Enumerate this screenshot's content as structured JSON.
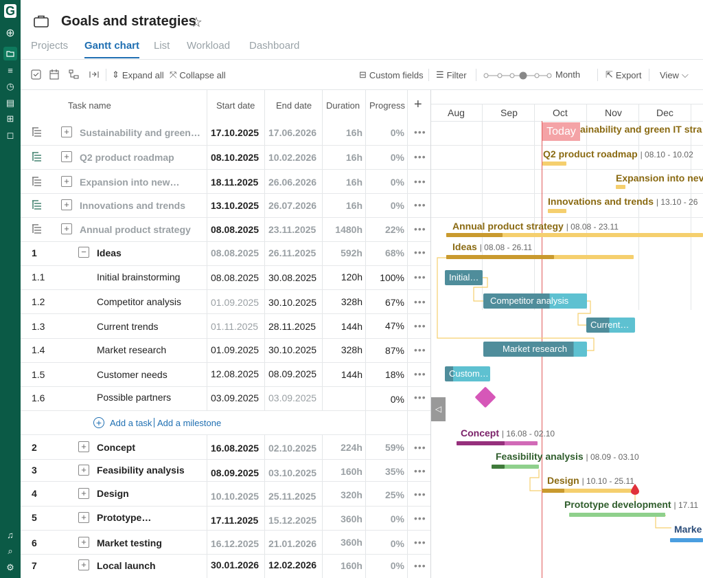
{
  "app": {
    "logo": "G",
    "title": "Goals and strategies"
  },
  "tabs": [
    "Projects",
    "Gantt chart",
    "List",
    "Workload",
    "Dashboard"
  ],
  "toolbar": {
    "expand_all": "Expand all",
    "collapse_all": "Collapse all",
    "custom_fields": "Custom fields",
    "filter": "Filter",
    "zoom": "Month",
    "export": "Export",
    "view": "View"
  },
  "table": {
    "headers": {
      "task_name": "Task name",
      "start": "Start date",
      "end": "End date",
      "duration": "Duration",
      "progress": "Progress",
      "add": "+"
    },
    "projects": [
      {
        "name": "Sustainability and green…",
        "start": "17.10.2025",
        "end": "17.06.2026",
        "duration": "16h",
        "progress": "0%"
      },
      {
        "name": "Q2 product roadmap",
        "start": "08.10.2025",
        "end": "10.02.2026",
        "duration": "16h",
        "progress": "0%"
      },
      {
        "name": "Expansion into new…",
        "start": "18.11.2025",
        "end": "26.06.2026",
        "duration": "16h",
        "progress": "0%"
      },
      {
        "name": "Innovations and trends",
        "start": "13.10.2025",
        "end": "26.07.2026",
        "duration": "16h",
        "progress": "0%"
      },
      {
        "name": "Annual product strategy",
        "start": "08.08.2025",
        "end": "23.11.2025",
        "duration": "1480h",
        "progress": "22%"
      }
    ],
    "ideas": {
      "num": "1",
      "name": "Ideas",
      "start": "08.08.2025",
      "end": "26.11.2025",
      "duration": "592h",
      "progress": "68%"
    },
    "subtasks": [
      {
        "num": "1.1",
        "name": "Initial brainstorming",
        "start": "08.08.2025",
        "end": "30.08.2025",
        "duration": "120h",
        "progress": "100%"
      },
      {
        "num": "1.2",
        "name": "Competitor analysis",
        "start": "01.09.2025",
        "end": "30.10.2025",
        "duration": "328h",
        "progress": "67%"
      },
      {
        "num": "1.3",
        "name": "Current trends",
        "start": "01.11.2025",
        "end": "28.11.2025",
        "duration": "144h",
        "progress": "47%"
      },
      {
        "num": "1.4",
        "name": "Market research",
        "start": "01.09.2025",
        "end": "30.10.2025",
        "duration": "328h",
        "progress": "87%"
      },
      {
        "num": "1.5",
        "name": "Customer needs",
        "start": "12.08.2025",
        "end": "08.09.2025",
        "duration": "144h",
        "progress": "18%"
      },
      {
        "num": "1.6",
        "name": "Possible partners",
        "start": "03.09.2025",
        "end": "03.09.2025",
        "duration": "",
        "progress": "0%"
      }
    ],
    "add_task": "Add a task",
    "add_milestone": "Add a milestone",
    "groups": [
      {
        "num": "2",
        "name": "Concept",
        "start": "16.08.2025",
        "end": "02.10.2025",
        "duration": "224h",
        "progress": "59%"
      },
      {
        "num": "3",
        "name": "Feasibility analysis",
        "start": "08.09.2025",
        "end": "03.10.2025",
        "duration": "160h",
        "progress": "35%"
      },
      {
        "num": "4",
        "name": "Design",
        "start": "10.10.2025",
        "end": "25.11.2025",
        "duration": "320h",
        "progress": "25%"
      },
      {
        "num": "5",
        "name": "Prototype…",
        "start": "17.11.2025",
        "end": "15.12.2025",
        "duration": "360h",
        "progress": "0%"
      },
      {
        "num": "6",
        "name": "Market testing",
        "start": "16.12.2025",
        "end": "21.01.2026",
        "duration": "360h",
        "progress": "0%"
      },
      {
        "num": "7",
        "name": "Local launch",
        "start": "30.01.2026",
        "end": "12.02.2026",
        "duration": "160h",
        "progress": "0%"
      }
    ]
  },
  "gantt": {
    "months": [
      "Aug",
      "Sep",
      "Oct",
      "Nov",
      "Dec"
    ],
    "today": "Today",
    "labels": {
      "sustainability": "ainability and green IT stra",
      "q2": "Q2 product roadmap",
      "q2_dates": "08.10 - 10.02",
      "expansion": "Expansion into nev",
      "innovations": "Innovations and trends",
      "innovations_dates": "13.10 - 26",
      "annual": "Annual product strategy",
      "annual_dates": "08.08 - 23.11",
      "ideas": "Ideas",
      "ideas_dates": "08.08 - 26.11",
      "initial": "Initial…",
      "competitor": "Competitor analysis",
      "current": "Current…",
      "market": "Market research",
      "customer": "Custom…",
      "concept": "Concept",
      "concept_dates": "16.08 - 02.10",
      "feasibility": "Feasibility analysis",
      "feasibility_dates": "08.09 - 03.10",
      "design": "Design",
      "design_dates": "10.10 - 25.11",
      "prototype": "Prototype development",
      "prototype_dates": "17.11",
      "market_testing": "Marke"
    },
    "colors": {
      "gold": "#f5cf6e",
      "gold_dark": "#c99a2e",
      "teal": "#4f8d9b",
      "teal_light": "#5ec1d1",
      "purple": "#96307c",
      "purple_light": "#d16ab7",
      "green": "#6db86a",
      "green_dark": "#3f7a3a",
      "blue": "#4a9ee0",
      "today": "#f4a3a6"
    }
  }
}
